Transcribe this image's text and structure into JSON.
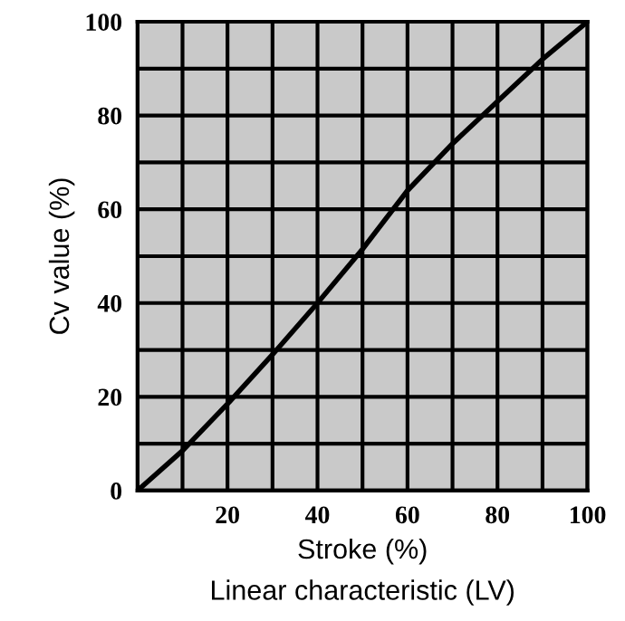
{
  "chart_data": {
    "type": "line",
    "xlabel": "Stroke (%)",
    "ylabel": "Cv value (%)",
    "annotations": [
      "Linear characteristic (LV)"
    ],
    "series": [
      {
        "color": "#000000",
        "x": [
          0,
          10,
          20,
          30,
          40,
          50,
          60,
          70,
          80,
          90,
          100
        ],
        "values": [
          0,
          8.5,
          18.5,
          29,
          40,
          51.5,
          64,
          74,
          83,
          92,
          100
        ]
      }
    ],
    "xlim": [
      0,
      100
    ],
    "ylim": [
      0,
      100
    ],
    "xticks": [
      {
        "value": 0,
        "label": null
      },
      {
        "value": 10,
        "label": null
      },
      20,
      {
        "value": 30,
        "label": null
      },
      40,
      {
        "value": 50,
        "label": null
      },
      60,
      {
        "value": 70,
        "label": null
      },
      80,
      {
        "value": 90,
        "label": null
      },
      100
    ],
    "yticks": [
      0,
      {
        "value": 10,
        "label": null
      },
      20,
      {
        "value": 30,
        "label": null
      },
      40,
      {
        "value": 50,
        "label": null
      },
      60,
      {
        "value": 70,
        "label": null
      },
      80,
      {
        "value": 90,
        "label": null
      },
      100
    ],
    "grid": true,
    "legend": false,
    "marker": "none",
    "line_style": "solid"
  }
}
